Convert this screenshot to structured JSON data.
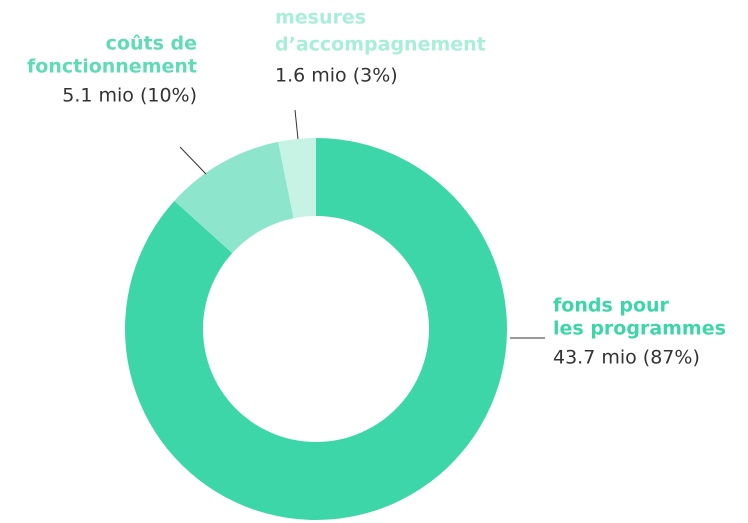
{
  "chart_data": {
    "type": "pie",
    "categories": [
      [
        "fonds pour",
        "les programmes"
      ],
      [
        "coûts de",
        "fonctionnement"
      ],
      [
        "mesures",
        "d’accompagnement"
      ]
    ],
    "values": [
      43.7,
      5.1,
      1.6
    ],
    "value_labels": [
      "43.7 mio (87%)",
      "5.1 mio (10%)",
      "1.6 mio (3%)"
    ],
    "colors": [
      "#3dd6a8",
      "#8de6cb",
      "#c6f3e4"
    ],
    "label_colors": [
      "#3dd6a8",
      "#5fdbb5",
      "#a9eed9"
    ]
  }
}
